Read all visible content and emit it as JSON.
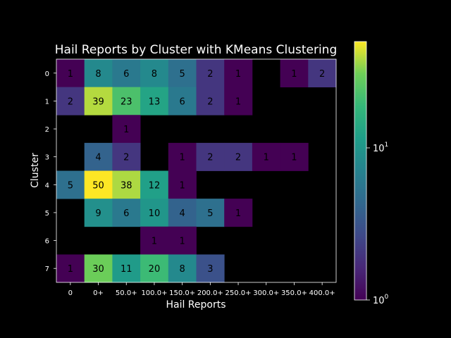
{
  "chart_data": {
    "type": "heatmap",
    "title": "Hail Reports by Cluster with KMeans Clustering",
    "xlabel": "Hail Reports",
    "ylabel": "Cluster",
    "x_categories": [
      "0",
      "0+",
      "50.0+",
      "100.0+",
      "150.0+",
      "200.0+",
      "250.0+",
      "300.0+",
      "350.0+",
      "400.0+"
    ],
    "y_categories": [
      "0",
      "1",
      "2",
      "3",
      "4",
      "5",
      "6",
      "7"
    ],
    "values": [
      [
        1,
        8,
        6,
        8,
        5,
        2,
        1,
        null,
        1,
        2
      ],
      [
        2,
        39,
        23,
        13,
        6,
        2,
        1,
        null,
        null,
        null
      ],
      [
        null,
        null,
        1,
        null,
        null,
        null,
        null,
        null,
        null,
        null
      ],
      [
        null,
        4,
        2,
        null,
        1,
        2,
        2,
        1,
        1,
        null
      ],
      [
        5,
        50,
        38,
        12,
        1,
        null,
        null,
        null,
        null,
        null
      ],
      [
        null,
        9,
        6,
        10,
        4,
        5,
        1,
        null,
        null,
        null
      ],
      [
        null,
        null,
        null,
        1,
        1,
        null,
        null,
        null,
        null,
        null
      ],
      [
        1,
        30,
        11,
        20,
        8,
        3,
        null,
        null,
        null,
        null
      ]
    ],
    "color_scale": "log",
    "colormap": "viridis",
    "vmin": 1,
    "vmax": 50,
    "colorbar_ticks": [
      {
        "base": "10",
        "exp": "0",
        "value": 1
      },
      {
        "base": "10",
        "exp": "1",
        "value": 10
      }
    ],
    "background_color": "#000000",
    "text_color": "#ffffff",
    "annotation_color": "#000000"
  }
}
